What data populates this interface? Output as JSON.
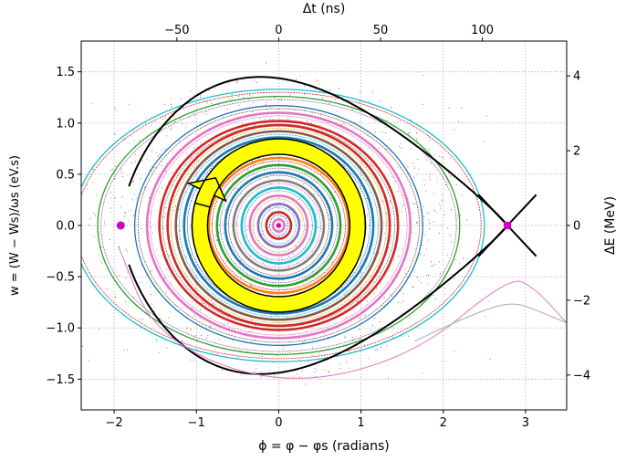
{
  "chart_data": {
    "type": "scatter",
    "title": "",
    "xlabel": "ϕ = φ − φs (radians)",
    "ylabel_left": "w = (W − Ws)/ωs (eV.s)",
    "xlabel_top": "Δt (ns)",
    "ylabel_right": "ΔE (MeV)",
    "xlim": [
      -2.4,
      3.5
    ],
    "ylim": [
      -1.8,
      1.8
    ],
    "grid": true,
    "x_ticks": [
      "−2",
      "−1",
      "0",
      "1",
      "2",
      "3"
    ],
    "y_ticks": [
      "−1.5",
      "−1.0",
      "−0.5",
      "0.0",
      "0.5",
      "1.0",
      "1.5"
    ],
    "top_ticks": [
      "−50",
      "0",
      "50",
      "100"
    ],
    "right_ticks": [
      "−4",
      "−2",
      "0",
      "2",
      "4"
    ],
    "x_tick_values": [
      -2,
      -1,
      0,
      1,
      2,
      3
    ],
    "y_tick_values": [
      -1.5,
      -1.0,
      -0.5,
      0.0,
      0.5,
      1.0,
      1.5
    ],
    "top_tick_values": [
      -50,
      0,
      50,
      100
    ],
    "right_tick_values": [
      -4,
      -2,
      0,
      2,
      4
    ],
    "ns_per_radian": 40.4,
    "mev_per_evs": 2.74,
    "separatrix": {
      "color": "#000000",
      "stable_point": [
        0,
        0
      ],
      "unstable_point": [
        2.78,
        0
      ],
      "left_turning_point": [
        -1.92,
        0
      ],
      "max_w": 1.45
    },
    "orbit_colors": [
      "#1f77b4",
      "#ff7f0e",
      "#2ca02c",
      "#d62728",
      "#9467bd",
      "#8c564b",
      "#e377c2",
      "#7f7f7f",
      "#bcbd22",
      "#17becf"
    ],
    "orbits": [
      {
        "rx": 2.5,
        "ry": 1.33,
        "color": "#17becf"
      },
      {
        "rx": 2.2,
        "ry": 1.26,
        "color": "#2ca02c"
      },
      {
        "rx": 1.75,
        "ry": 1.17,
        "color": "#1f77b4"
      },
      {
        "rx": 1.6,
        "ry": 1.1,
        "color": "#e377c2"
      },
      {
        "rx": 1.45,
        "ry": 1.02,
        "color": "#d62728"
      },
      {
        "rx": 1.35,
        "ry": 0.98,
        "color": "#d62728"
      },
      {
        "rx": 1.25,
        "ry": 0.92,
        "color": "#8c564b"
      },
      {
        "rx": 1.15,
        "ry": 0.86,
        "color": "#1f77b4"
      },
      {
        "rx": 1.05,
        "ry": 0.8,
        "color": "#9467bd"
      },
      {
        "rx": 0.95,
        "ry": 0.73,
        "color": "#bcbd22"
      },
      {
        "rx": 0.85,
        "ry": 0.66,
        "color": "#ff7f0e"
      },
      {
        "rx": 0.75,
        "ry": 0.59,
        "color": "#2ca02c"
      },
      {
        "rx": 0.65,
        "ry": 0.52,
        "color": "#1f77b4"
      },
      {
        "rx": 0.55,
        "ry": 0.44,
        "color": "#7f7f7f"
      },
      {
        "rx": 0.45,
        "ry": 0.37,
        "color": "#17becf"
      },
      {
        "rx": 0.35,
        "ry": 0.29,
        "color": "#e377c2"
      },
      {
        "rx": 0.25,
        "ry": 0.21,
        "color": "#9467bd"
      },
      {
        "rx": 0.15,
        "ry": 0.13,
        "color": "#d62728"
      },
      {
        "rx": 0.07,
        "ry": 0.06,
        "color": "#e377c2"
      }
    ],
    "outer_curves": [
      {
        "color": "#e377c2",
        "points": [
          [
            -1.95,
            -0.2
          ],
          [
            -1.5,
            -1.1
          ],
          [
            0,
            -1.58
          ],
          [
            1.6,
            -1.3
          ],
          [
            2.8,
            -0.5
          ],
          [
            3.1,
            -0.6
          ],
          [
            3.5,
            -0.95
          ]
        ]
      },
      {
        "color": "#aaaaaa",
        "points": [
          [
            1.65,
            -1.13
          ],
          [
            2.4,
            -0.85
          ],
          [
            2.85,
            -0.74
          ],
          [
            3.2,
            -0.85
          ],
          [
            3.5,
            -0.95
          ]
        ]
      }
    ],
    "markers": [
      {
        "x": -1.92,
        "y": 0,
        "shape": "circle",
        "color": "#cc00cc"
      },
      {
        "x": 2.78,
        "y": 0,
        "shape": "square",
        "color": "#cc00cc"
      }
    ],
    "rotation_arrow": {
      "fill": "#ffff00",
      "stroke": "#000000",
      "direction": "clockwise"
    },
    "scatter_colors": [
      "#1f77b4",
      "#d62728",
      "#9467bd",
      "#2ca02c",
      "#ff7f0e",
      "#e377c2",
      "#17becf",
      "#7f7f7f"
    ]
  }
}
